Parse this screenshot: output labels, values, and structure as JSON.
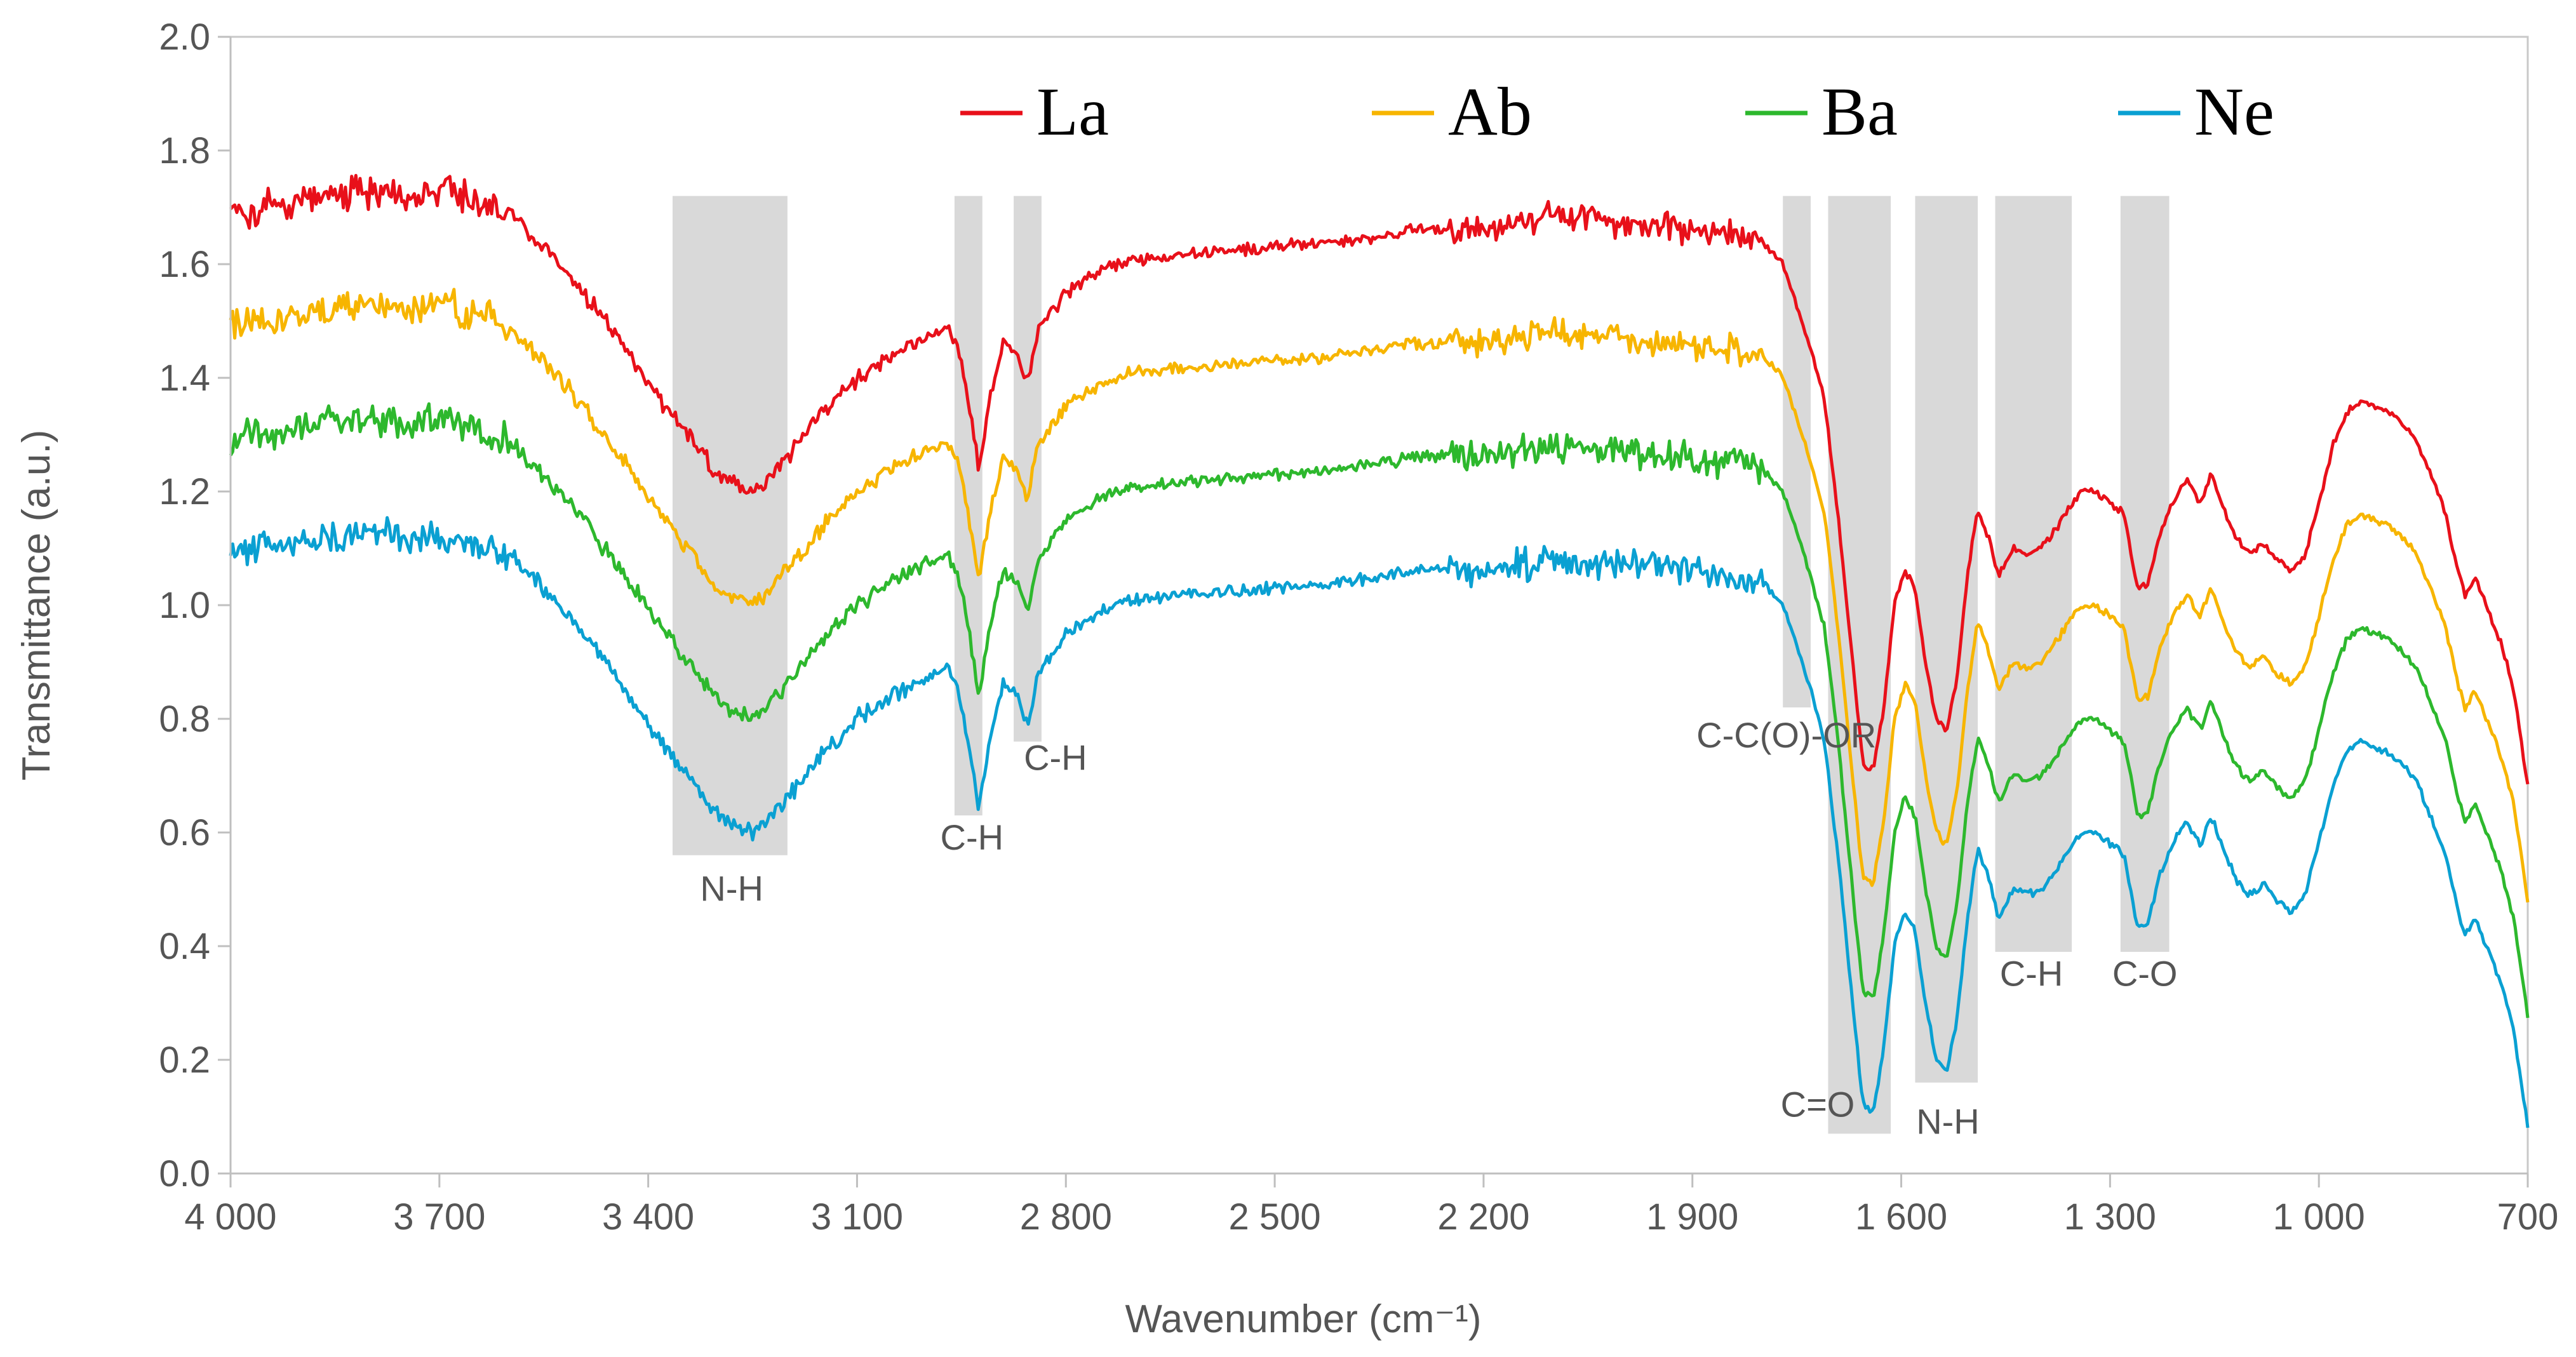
{
  "chart_data": {
    "type": "line",
    "title": "",
    "xlabel": "Wavenumber (cm⁻¹)",
    "ylabel": "Transmittance (a.u.)",
    "xlim": [
      4000,
      700
    ],
    "ylim": [
      0.0,
      2.0
    ],
    "x_ticks": [
      {
        "value": 4000,
        "label": "4 000"
      },
      {
        "value": 3700,
        "label": "3 700"
      },
      {
        "value": 3400,
        "label": "3 400"
      },
      {
        "value": 3100,
        "label": "3 100"
      },
      {
        "value": 2800,
        "label": "2 800"
      },
      {
        "value": 2500,
        "label": "2 500"
      },
      {
        "value": 2200,
        "label": "2 200"
      },
      {
        "value": 1900,
        "label": "1 900"
      },
      {
        "value": 1600,
        "label": "1 600"
      },
      {
        "value": 1300,
        "label": "1 300"
      },
      {
        "value": 1000,
        "label": "1 000"
      },
      {
        "value": 700,
        "label": "700"
      }
    ],
    "y_ticks": [
      {
        "value": 0.0,
        "label": "0.0"
      },
      {
        "value": 0.2,
        "label": "0.2"
      },
      {
        "value": 0.4,
        "label": "0.4"
      },
      {
        "value": 0.6,
        "label": "0.6"
      },
      {
        "value": 0.8,
        "label": "0.8"
      },
      {
        "value": 1.0,
        "label": "1.0"
      },
      {
        "value": 1.2,
        "label": "1.2"
      },
      {
        "value": 1.4,
        "label": "1.4"
      },
      {
        "value": 1.6,
        "label": "1.6"
      },
      {
        "value": 1.8,
        "label": "1.8"
      },
      {
        "value": 2.0,
        "label": "2.0"
      }
    ],
    "legend_position": "top",
    "series": [
      {
        "name": "La",
        "color": "#e8101a",
        "offset": 0.6
      },
      {
        "name": "Ab",
        "color": "#f7b500",
        "offset": 0.4
      },
      {
        "name": "Ba",
        "color": "#2db82d",
        "offset": 0.2
      },
      {
        "name": "Ne",
        "color": "#0aa0d2",
        "offset": 0.0
      }
    ],
    "base_profile": [
      [
        4000,
        1.09
      ],
      [
        3950,
        1.1
      ],
      [
        3900,
        1.11
      ],
      [
        3850,
        1.12
      ],
      [
        3800,
        1.13
      ],
      [
        3750,
        1.12
      ],
      [
        3700,
        1.13
      ],
      [
        3650,
        1.11
      ],
      [
        3600,
        1.09
      ],
      [
        3550,
        1.03
      ],
      [
        3500,
        0.96
      ],
      [
        3450,
        0.88
      ],
      [
        3400,
        0.79
      ],
      [
        3350,
        0.71
      ],
      [
        3300,
        0.63
      ],
      [
        3270,
        0.61
      ],
      [
        3250,
        0.6
      ],
      [
        3230,
        0.62
      ],
      [
        3200,
        0.66
      ],
      [
        3150,
        0.74
      ],
      [
        3100,
        0.8
      ],
      [
        3050,
        0.84
      ],
      [
        3000,
        0.87
      ],
      [
        2970,
        0.89
      ],
      [
        2955,
        0.85
      ],
      [
        2940,
        0.76
      ],
      [
        2925,
        0.64
      ],
      [
        2910,
        0.76
      ],
      [
        2890,
        0.86
      ],
      [
        2870,
        0.84
      ],
      [
        2855,
        0.79
      ],
      [
        2840,
        0.88
      ],
      [
        2800,
        0.95
      ],
      [
        2750,
        0.99
      ],
      [
        2700,
        1.01
      ],
      [
        2600,
        1.02
      ],
      [
        2500,
        1.03
      ],
      [
        2400,
        1.04
      ],
      [
        2300,
        1.06
      ],
      [
        2200,
        1.06
      ],
      [
        2100,
        1.08
      ],
      [
        2000,
        1.07
      ],
      [
        1900,
        1.06
      ],
      [
        1800,
        1.04
      ],
      [
        1770,
        1.0
      ],
      [
        1750,
        0.93
      ],
      [
        1730,
        0.85
      ],
      [
        1710,
        0.76
      ],
      [
        1690,
        0.55
      ],
      [
        1670,
        0.3
      ],
      [
        1655,
        0.12
      ],
      [
        1640,
        0.11
      ],
      [
        1625,
        0.22
      ],
      [
        1610,
        0.4
      ],
      [
        1595,
        0.46
      ],
      [
        1580,
        0.43
      ],
      [
        1565,
        0.3
      ],
      [
        1550,
        0.2
      ],
      [
        1535,
        0.18
      ],
      [
        1520,
        0.27
      ],
      [
        1505,
        0.45
      ],
      [
        1490,
        0.57
      ],
      [
        1475,
        0.52
      ],
      [
        1460,
        0.45
      ],
      [
        1440,
        0.5
      ],
      [
        1420,
        0.49
      ],
      [
        1400,
        0.5
      ],
      [
        1380,
        0.53
      ],
      [
        1360,
        0.57
      ],
      [
        1340,
        0.6
      ],
      [
        1320,
        0.6
      ],
      [
        1300,
        0.58
      ],
      [
        1280,
        0.56
      ],
      [
        1260,
        0.43
      ],
      [
        1245,
        0.44
      ],
      [
        1230,
        0.52
      ],
      [
        1210,
        0.58
      ],
      [
        1190,
        0.62
      ],
      [
        1170,
        0.58
      ],
      [
        1155,
        0.63
      ],
      [
        1140,
        0.58
      ],
      [
        1120,
        0.52
      ],
      [
        1100,
        0.49
      ],
      [
        1080,
        0.51
      ],
      [
        1060,
        0.48
      ],
      [
        1040,
        0.46
      ],
      [
        1020,
        0.49
      ],
      [
        1000,
        0.58
      ],
      [
        980,
        0.68
      ],
      [
        960,
        0.74
      ],
      [
        940,
        0.76
      ],
      [
        920,
        0.75
      ],
      [
        900,
        0.74
      ],
      [
        880,
        0.72
      ],
      [
        860,
        0.69
      ],
      [
        840,
        0.63
      ],
      [
        820,
        0.57
      ],
      [
        800,
        0.46
      ],
      [
        790,
        0.42
      ],
      [
        775,
        0.45
      ],
      [
        760,
        0.4
      ],
      [
        740,
        0.34
      ],
      [
        720,
        0.25
      ],
      [
        700,
        0.08
      ]
    ],
    "bands": [
      {
        "label": "N-H",
        "x_from": 3365,
        "x_to": 3200,
        "y_bottom": 0.56,
        "y_top": 1.72,
        "label_x": 3280,
        "label_y": 0.48
      },
      {
        "label": "C-H",
        "x_from": 2960,
        "x_to": 2920,
        "y_bottom": 0.63,
        "y_top": 1.72,
        "label_x": 2935,
        "label_y": 0.57
      },
      {
        "label": "C-H",
        "x_from": 2875,
        "x_to": 2835,
        "y_bottom": 0.76,
        "y_top": 1.72,
        "label_x": 2815,
        "label_y": 0.71
      },
      {
        "label": "C-C(O)-OR",
        "x_from": 1770,
        "x_to": 1730,
        "y_bottom": 0.82,
        "y_top": 1.72,
        "label_x": 1765,
        "label_y": 0.75
      },
      {
        "label": "C=O",
        "x_from": 1705,
        "x_to": 1615,
        "y_bottom": 0.07,
        "y_top": 1.72,
        "label_x": 1720,
        "label_y": 0.1
      },
      {
        "label": "N-H",
        "x_from": 1580,
        "x_to": 1490,
        "y_bottom": 0.16,
        "y_top": 1.72,
        "label_x": 1533,
        "label_y": 0.07
      },
      {
        "label": "C-H",
        "x_from": 1465,
        "x_to": 1355,
        "y_bottom": 0.39,
        "y_top": 1.72,
        "label_x": 1413,
        "label_y": 0.33
      },
      {
        "label": "C-O",
        "x_from": 1285,
        "x_to": 1215,
        "y_bottom": 0.39,
        "y_top": 1.72,
        "label_x": 1250,
        "label_y": 0.33
      }
    ]
  }
}
